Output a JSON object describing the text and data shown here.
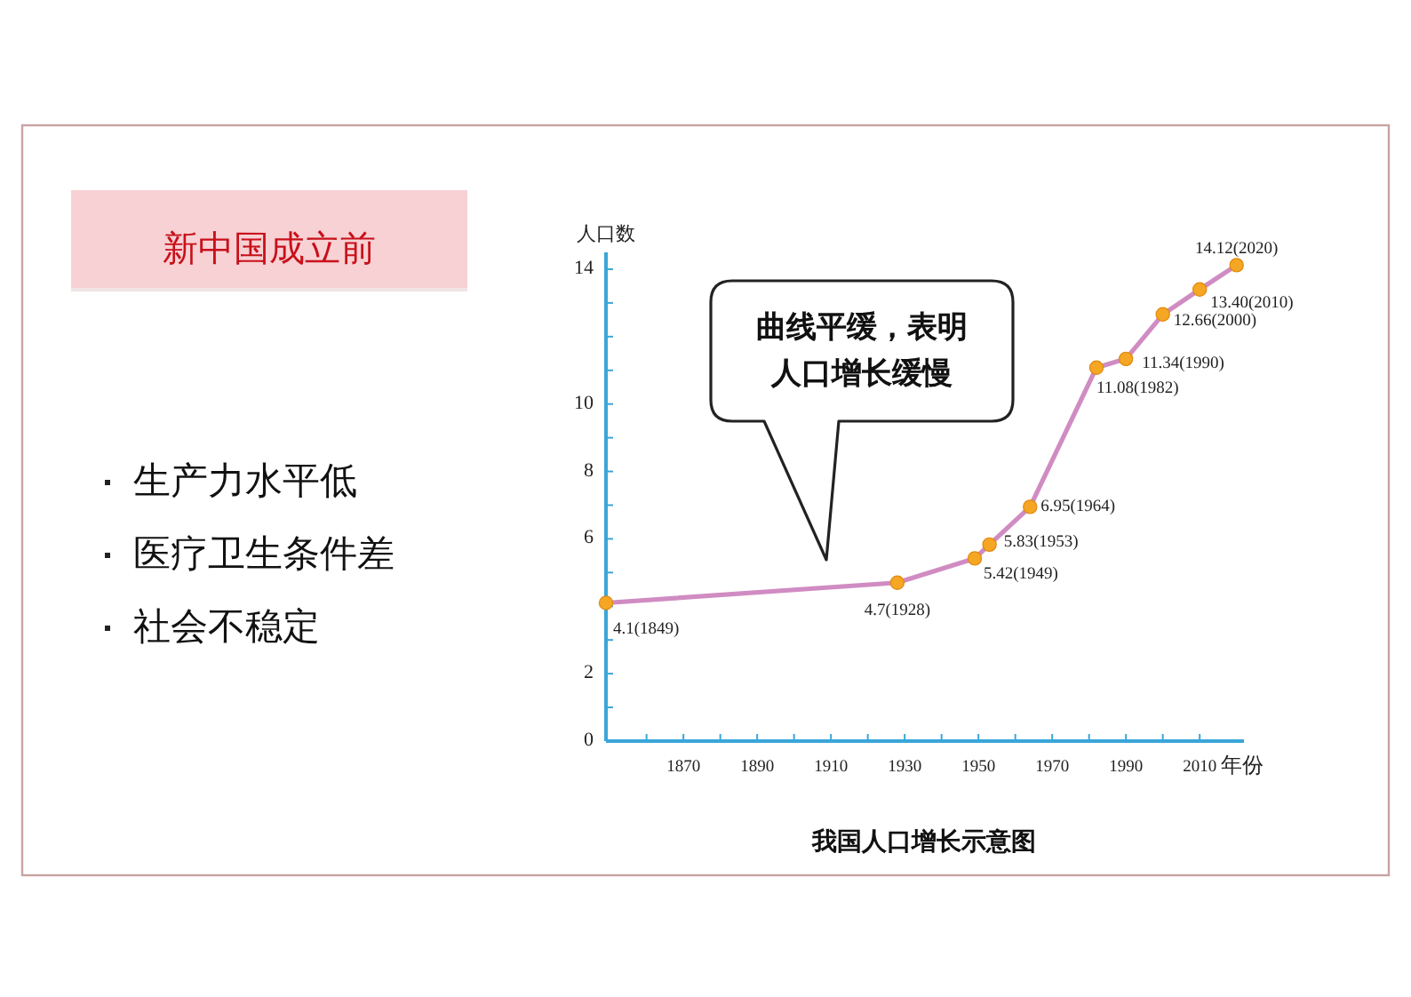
{
  "chart_data": [
    {
      "type": "other",
      "title": "新中国成立前",
      "annotations": [
        "生产力水平低",
        "医疗卫生条件差",
        "社会不稳定"
      ]
    },
    {
      "type": "line",
      "title": "我国人口增长示意图",
      "xlabel": "年份",
      "ylabel": "人口数",
      "annotations": [
        "曲线平缓，表明人口增长缓慢"
      ],
      "x": [
        1849,
        1928,
        1949,
        1953,
        1964,
        1982,
        1990,
        2000,
        2010,
        2020
      ],
      "series": [
        {
          "color": "#d08cc2",
          "values": [
            4.1,
            4.7,
            5.42,
            5.83,
            6.95,
            11.08,
            11.34,
            12.66,
            13.4,
            14.12
          ],
          "colors": [
            "#f5a623",
            "#f5a623",
            "#f5a623",
            "#f5a623",
            "#f5a623",
            "#f5a623",
            "#f5a623",
            "#f5a623",
            "#f5a623",
            "#f5a623"
          ],
          "value_labels": [
            "4.1(1849)",
            "4.7(1928)",
            "5.42(1949)",
            "5.83(1953)",
            "6.95(1964)",
            "11.08(1982)",
            "11.34(1990)",
            "12.66(2000)",
            "13.40(2010)",
            "14.12(2020)"
          ]
        }
      ],
      "xlim": [
        1849,
        2022
      ],
      "xticks": [
        {
          "value": 1860,
          "label": null
        },
        1870,
        {
          "value": 1880,
          "label": null
        },
        1890,
        {
          "value": 1900,
          "label": null
        },
        1910,
        {
          "value": 1920,
          "label": null
        },
        1930,
        {
          "value": 1940,
          "label": null
        },
        1950,
        {
          "value": 1960,
          "label": null
        },
        1970,
        {
          "value": 1980,
          "label": null
        },
        1990,
        {
          "value": 2000,
          "label": null
        },
        2010
      ],
      "ylim": [
        0,
        14.5
      ],
      "yticks": [
        0,
        {
          "value": 1,
          "label": null
        },
        2,
        {
          "value": 3,
          "label": null
        },
        {
          "value": 4,
          "label": null
        },
        {
          "value": 5,
          "label": null
        },
        6,
        {
          "value": 7,
          "label": null
        },
        8,
        {
          "value": 9,
          "label": null
        },
        10,
        {
          "value": 11,
          "label": null
        },
        {
          "value": 12,
          "label": null
        },
        {
          "value": 13,
          "label": null
        },
        14
      ],
      "marker": "circle"
    }
  ]
}
